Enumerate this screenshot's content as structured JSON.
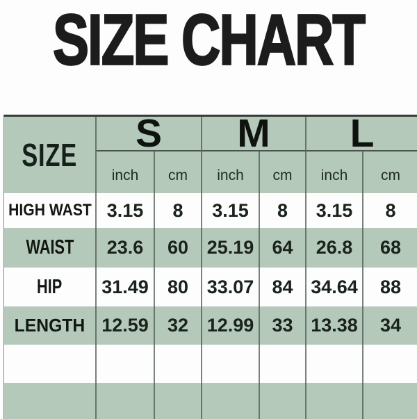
{
  "title": "SIZE CHART",
  "colors": {
    "table_green": "#b5c9bb",
    "grid_line": "#4e5850",
    "row_white": "#fdfdfd",
    "text_dark": "#161d17"
  },
  "table": {
    "corner_label": "SIZE",
    "size_groups": [
      "S",
      "M",
      "L"
    ],
    "unit_columns": [
      "inch",
      "cm",
      "inch",
      "cm",
      "inch",
      "cm"
    ],
    "rows": [
      {
        "label": "HIGH WAST",
        "values": [
          "3.15",
          "8",
          "3.15",
          "8",
          "3.15",
          "8"
        ]
      },
      {
        "label": "WAIST",
        "values": [
          "23.6",
          "60",
          "25.19",
          "64",
          "26.8",
          "68"
        ]
      },
      {
        "label": "HIP",
        "values": [
          "31.49",
          "80",
          "33.07",
          "84",
          "34.64",
          "88"
        ]
      },
      {
        "label": "LENGTH",
        "values": [
          "12.59",
          "32",
          "12.99",
          "33",
          "13.38",
          "34"
        ]
      },
      {
        "label": "",
        "values": [
          "",
          "",
          "",
          "",
          "",
          ""
        ]
      },
      {
        "label": "",
        "values": [
          "",
          "",
          "",
          "",
          "",
          ""
        ]
      }
    ]
  },
  "chart_data": {
    "type": "table",
    "title": "SIZE CHART",
    "columns": [
      "SIZE",
      "S (inch)",
      "S (cm)",
      "M (inch)",
      "M (cm)",
      "L (inch)",
      "L (cm)"
    ],
    "rows": [
      [
        "HIGH WAST",
        3.15,
        8,
        3.15,
        8,
        3.15,
        8
      ],
      [
        "WAIST",
        23.6,
        60,
        25.19,
        64,
        26.8,
        68
      ],
      [
        "HIP",
        31.49,
        80,
        33.07,
        84,
        34.64,
        88
      ],
      [
        "LENGTH",
        12.59,
        32,
        12.99,
        33,
        13.38,
        34
      ]
    ]
  }
}
